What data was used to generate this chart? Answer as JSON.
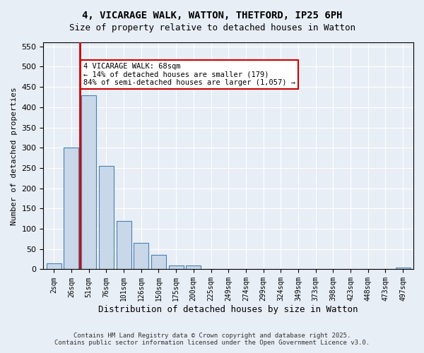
{
  "title_line1": "4, VICARAGE WALK, WATTON, THETFORD, IP25 6PH",
  "title_line2": "Size of property relative to detached houses in Watton",
  "xlabel": "Distribution of detached houses by size in Watton",
  "ylabel": "Number of detached properties",
  "categories": [
    "2sqm",
    "26sqm",
    "51sqm",
    "76sqm",
    "101sqm",
    "126sqm",
    "150sqm",
    "175sqm",
    "200sqm",
    "225sqm",
    "249sqm",
    "274sqm",
    "299sqm",
    "324sqm",
    "349sqm",
    "373sqm",
    "398sqm",
    "423sqm",
    "448sqm",
    "473sqm",
    "497sqm"
  ],
  "values": [
    15,
    300,
    430,
    255,
    120,
    65,
    35,
    10,
    10,
    0,
    0,
    0,
    0,
    0,
    0,
    0,
    0,
    0,
    0,
    0,
    5
  ],
  "bar_color": "#c8d8e8",
  "bar_edge_color": "#4a7fb5",
  "vline_x": 1,
  "vline_color": "#cc0000",
  "annotation_text": "4 VICARAGE WALK: 68sqm\n← 14% of detached houses are smaller (179)\n84% of semi-detached houses are larger (1,057) →",
  "annotation_box_edge": "#cc0000",
  "ylim": [
    0,
    560
  ],
  "yticks": [
    0,
    50,
    100,
    150,
    200,
    250,
    300,
    350,
    400,
    450,
    500,
    550
  ],
  "background_color": "#e8eef5",
  "footer_line1": "Contains HM Land Registry data © Crown copyright and database right 2025.",
  "footer_line2": "Contains public sector information licensed under the Open Government Licence v3.0."
}
